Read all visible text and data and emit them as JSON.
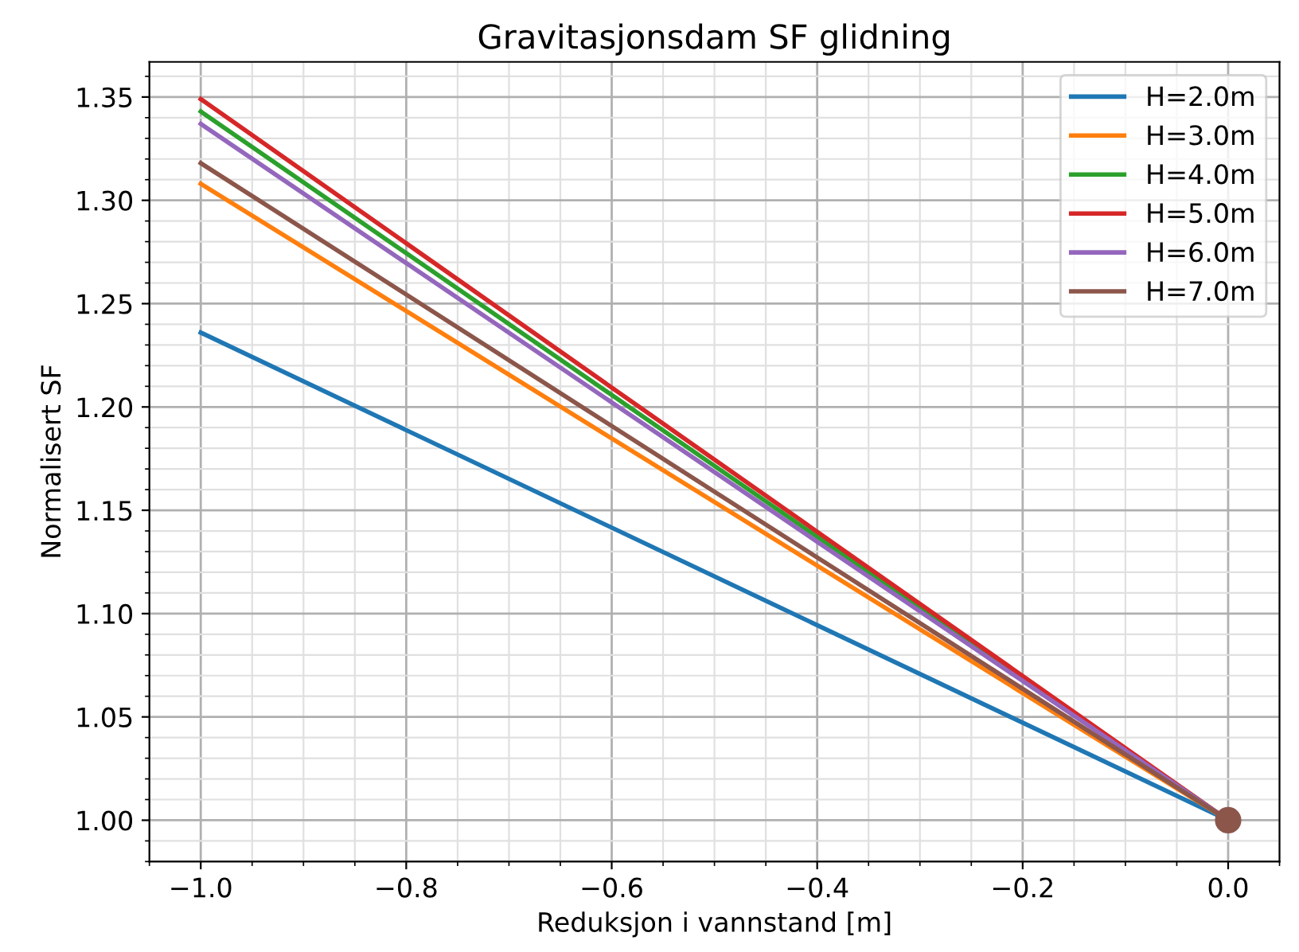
{
  "chart_data": {
    "type": "line",
    "title": "Gravitasjonsdam SF glidning",
    "xlabel": "Reduksjon i vannstand [m]",
    "ylabel": "Normalisert SF",
    "x": [
      -1.0,
      0.0
    ],
    "series": [
      {
        "name": "H=2.0m",
        "color": "#1f77b4",
        "values": [
          1.236,
          1.0
        ]
      },
      {
        "name": "H=3.0m",
        "color": "#ff7f0e",
        "values": [
          1.308,
          1.0
        ]
      },
      {
        "name": "H=4.0m",
        "color": "#2ca02c",
        "values": [
          1.343,
          1.0
        ]
      },
      {
        "name": "H=5.0m",
        "color": "#d62728",
        "values": [
          1.349,
          1.0
        ]
      },
      {
        "name": "H=6.0m",
        "color": "#9467bd",
        "values": [
          1.337,
          1.0
        ]
      },
      {
        "name": "H=7.0m",
        "color": "#8c564b",
        "values": [
          1.318,
          1.0
        ]
      },
      {
        "type": "scatter",
        "color": "#8c564b",
        "x": [
          0.0
        ],
        "values": [
          1.0
        ],
        "marker": "circle"
      }
    ],
    "xlim": [
      -1.05,
      0.05
    ],
    "xticks": [
      {
        "value": -1.0,
        "label": "−1.0"
      },
      {
        "value": -0.8,
        "label": "−0.8"
      },
      {
        "value": -0.6,
        "label": "−0.6"
      },
      {
        "value": -0.4,
        "label": "−0.4"
      },
      {
        "value": -0.2,
        "label": "−0.2"
      },
      {
        "value": 0.0,
        "label": "0.0"
      }
    ],
    "ylim": [
      0.98,
      1.367
    ],
    "yticks": [
      {
        "value": 1.0,
        "label": "1.00"
      },
      {
        "value": 1.05,
        "label": "1.05"
      },
      {
        "value": 1.1,
        "label": "1.10"
      },
      {
        "value": 1.15,
        "label": "1.15"
      },
      {
        "value": 1.2,
        "label": "1.20"
      },
      {
        "value": 1.25,
        "label": "1.25"
      },
      {
        "value": 1.3,
        "label": "1.30"
      },
      {
        "value": 1.35,
        "label": "1.35"
      }
    ],
    "grid": true,
    "legend": "top right"
  }
}
